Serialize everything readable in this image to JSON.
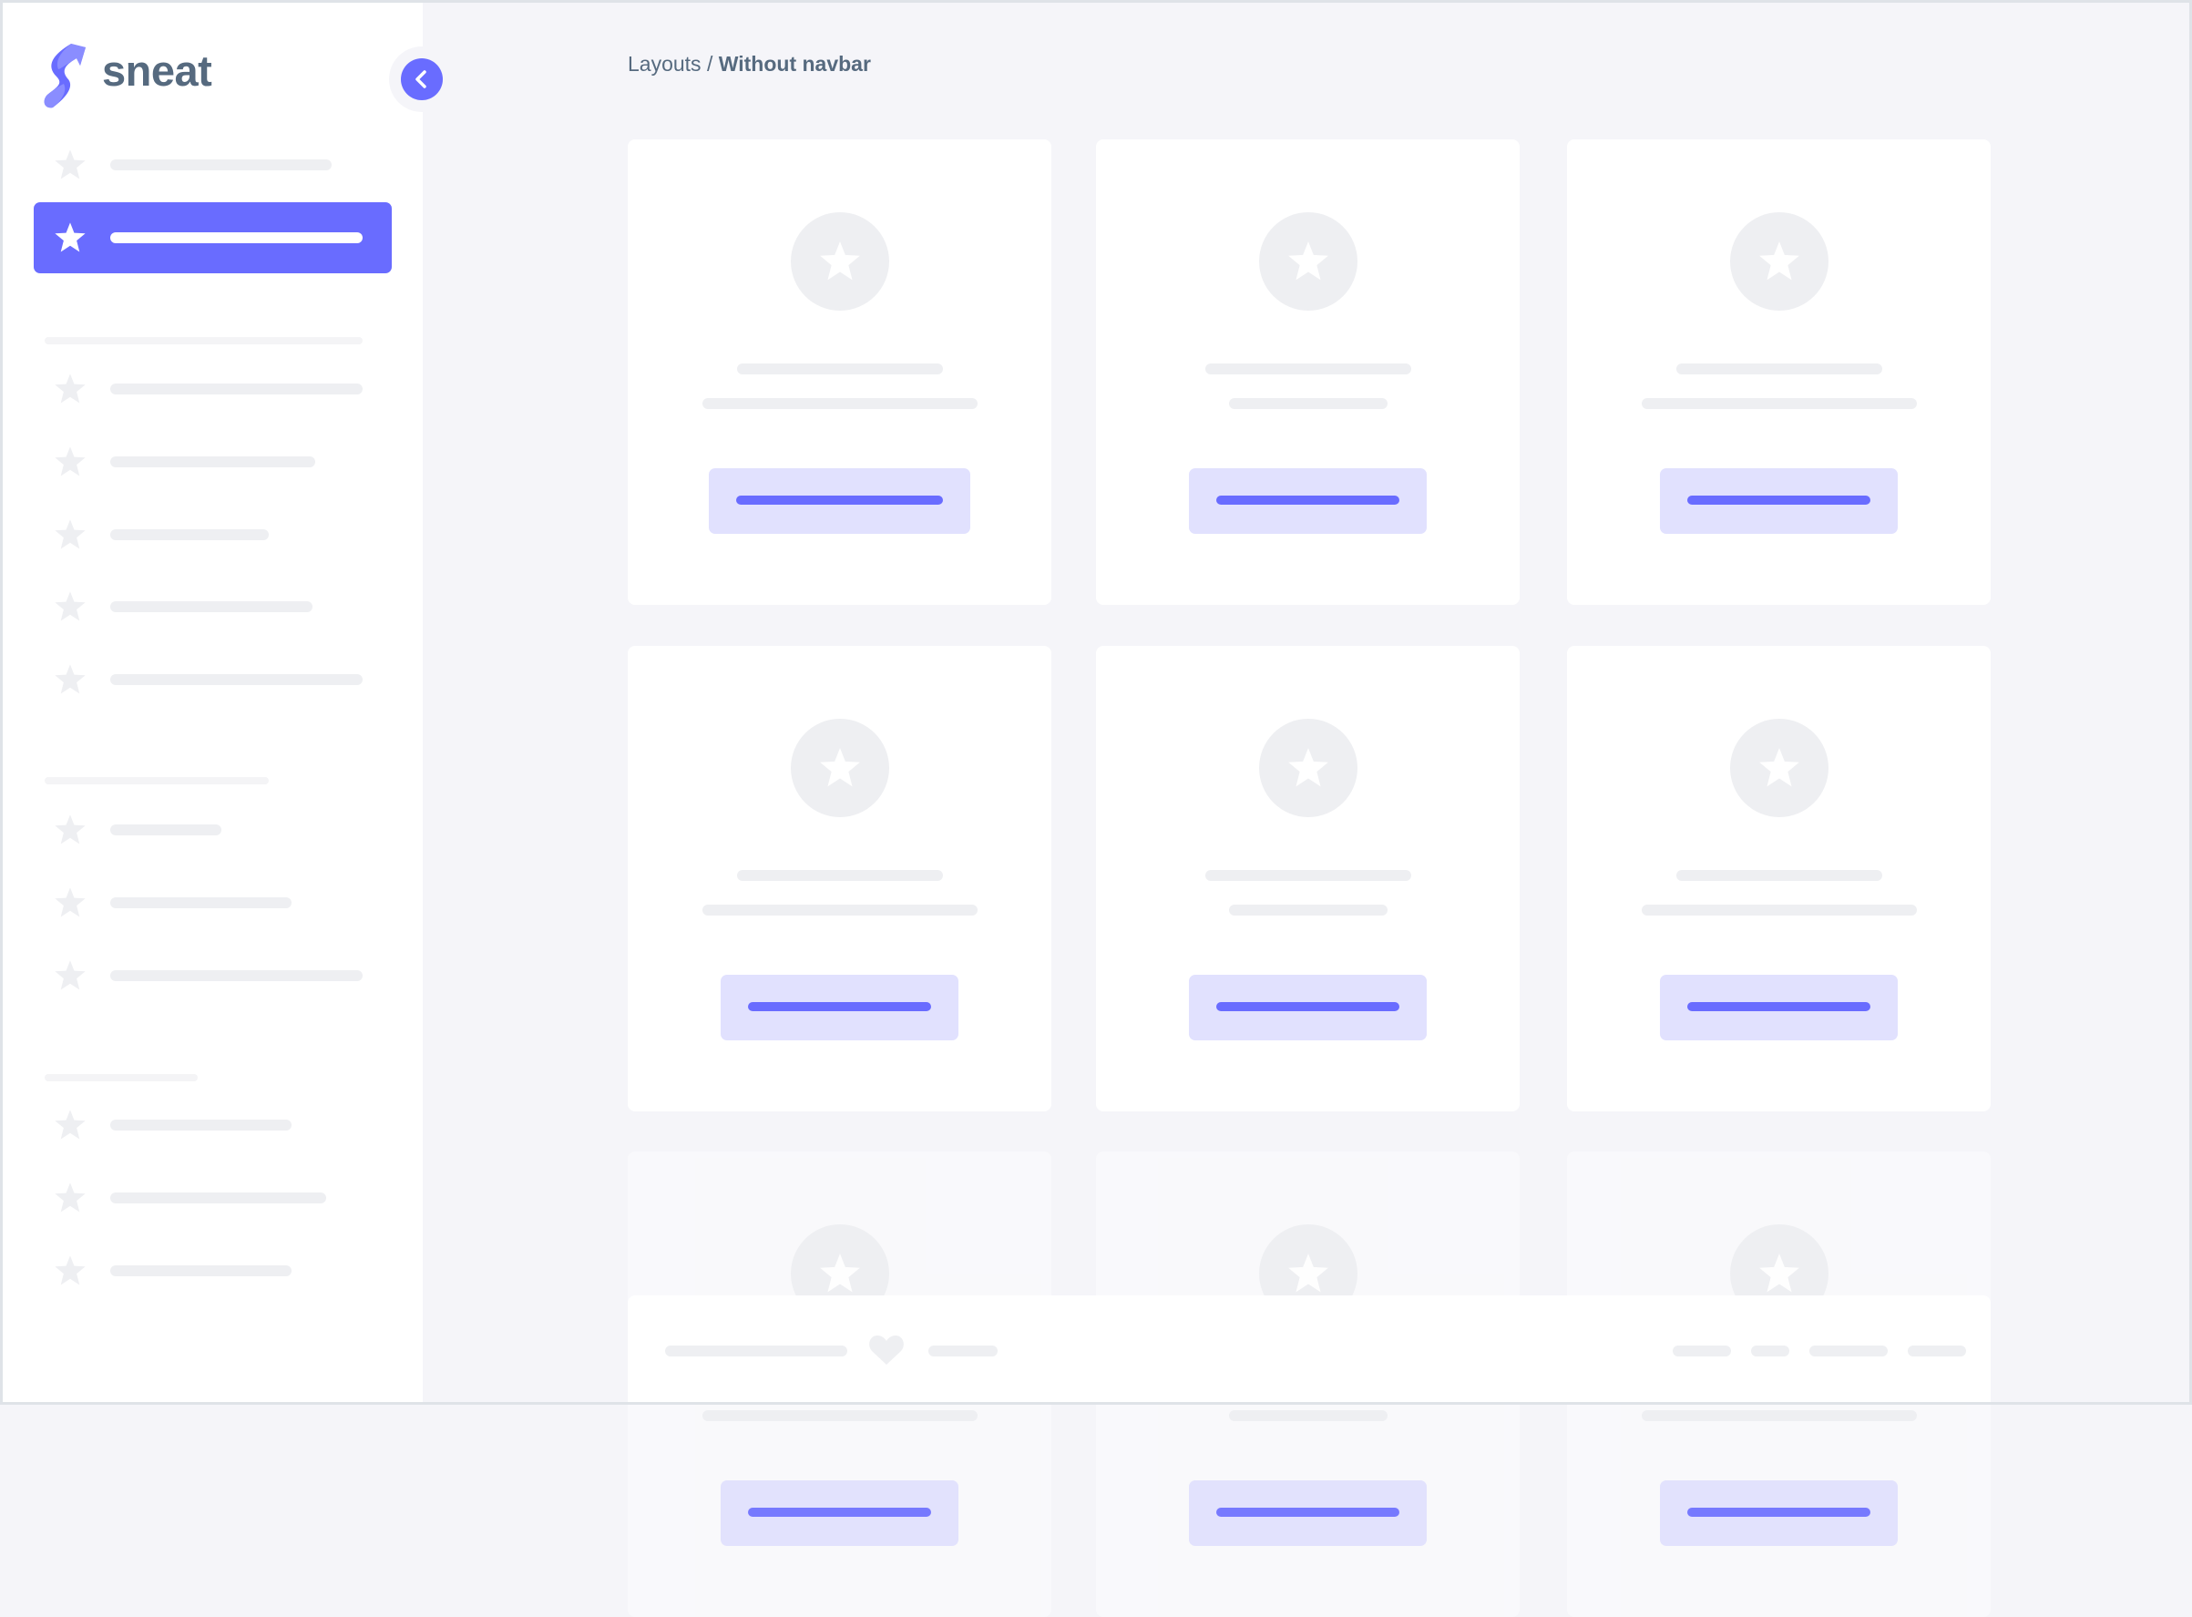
{
  "brand": {
    "name": "sneat",
    "primary_color": "#696cff",
    "logo_icon": "sneat-s-logo-icon"
  },
  "sidebar": {
    "toggle_icon": "chevron-left-icon",
    "active_index": 1,
    "item_icon": "star-icon",
    "items_count_note": null
  },
  "breadcrumb": {
    "parent": "Layouts",
    "separator": "/",
    "current": "Without navbar"
  },
  "footer": {
    "icon": "heart-icon"
  }
}
